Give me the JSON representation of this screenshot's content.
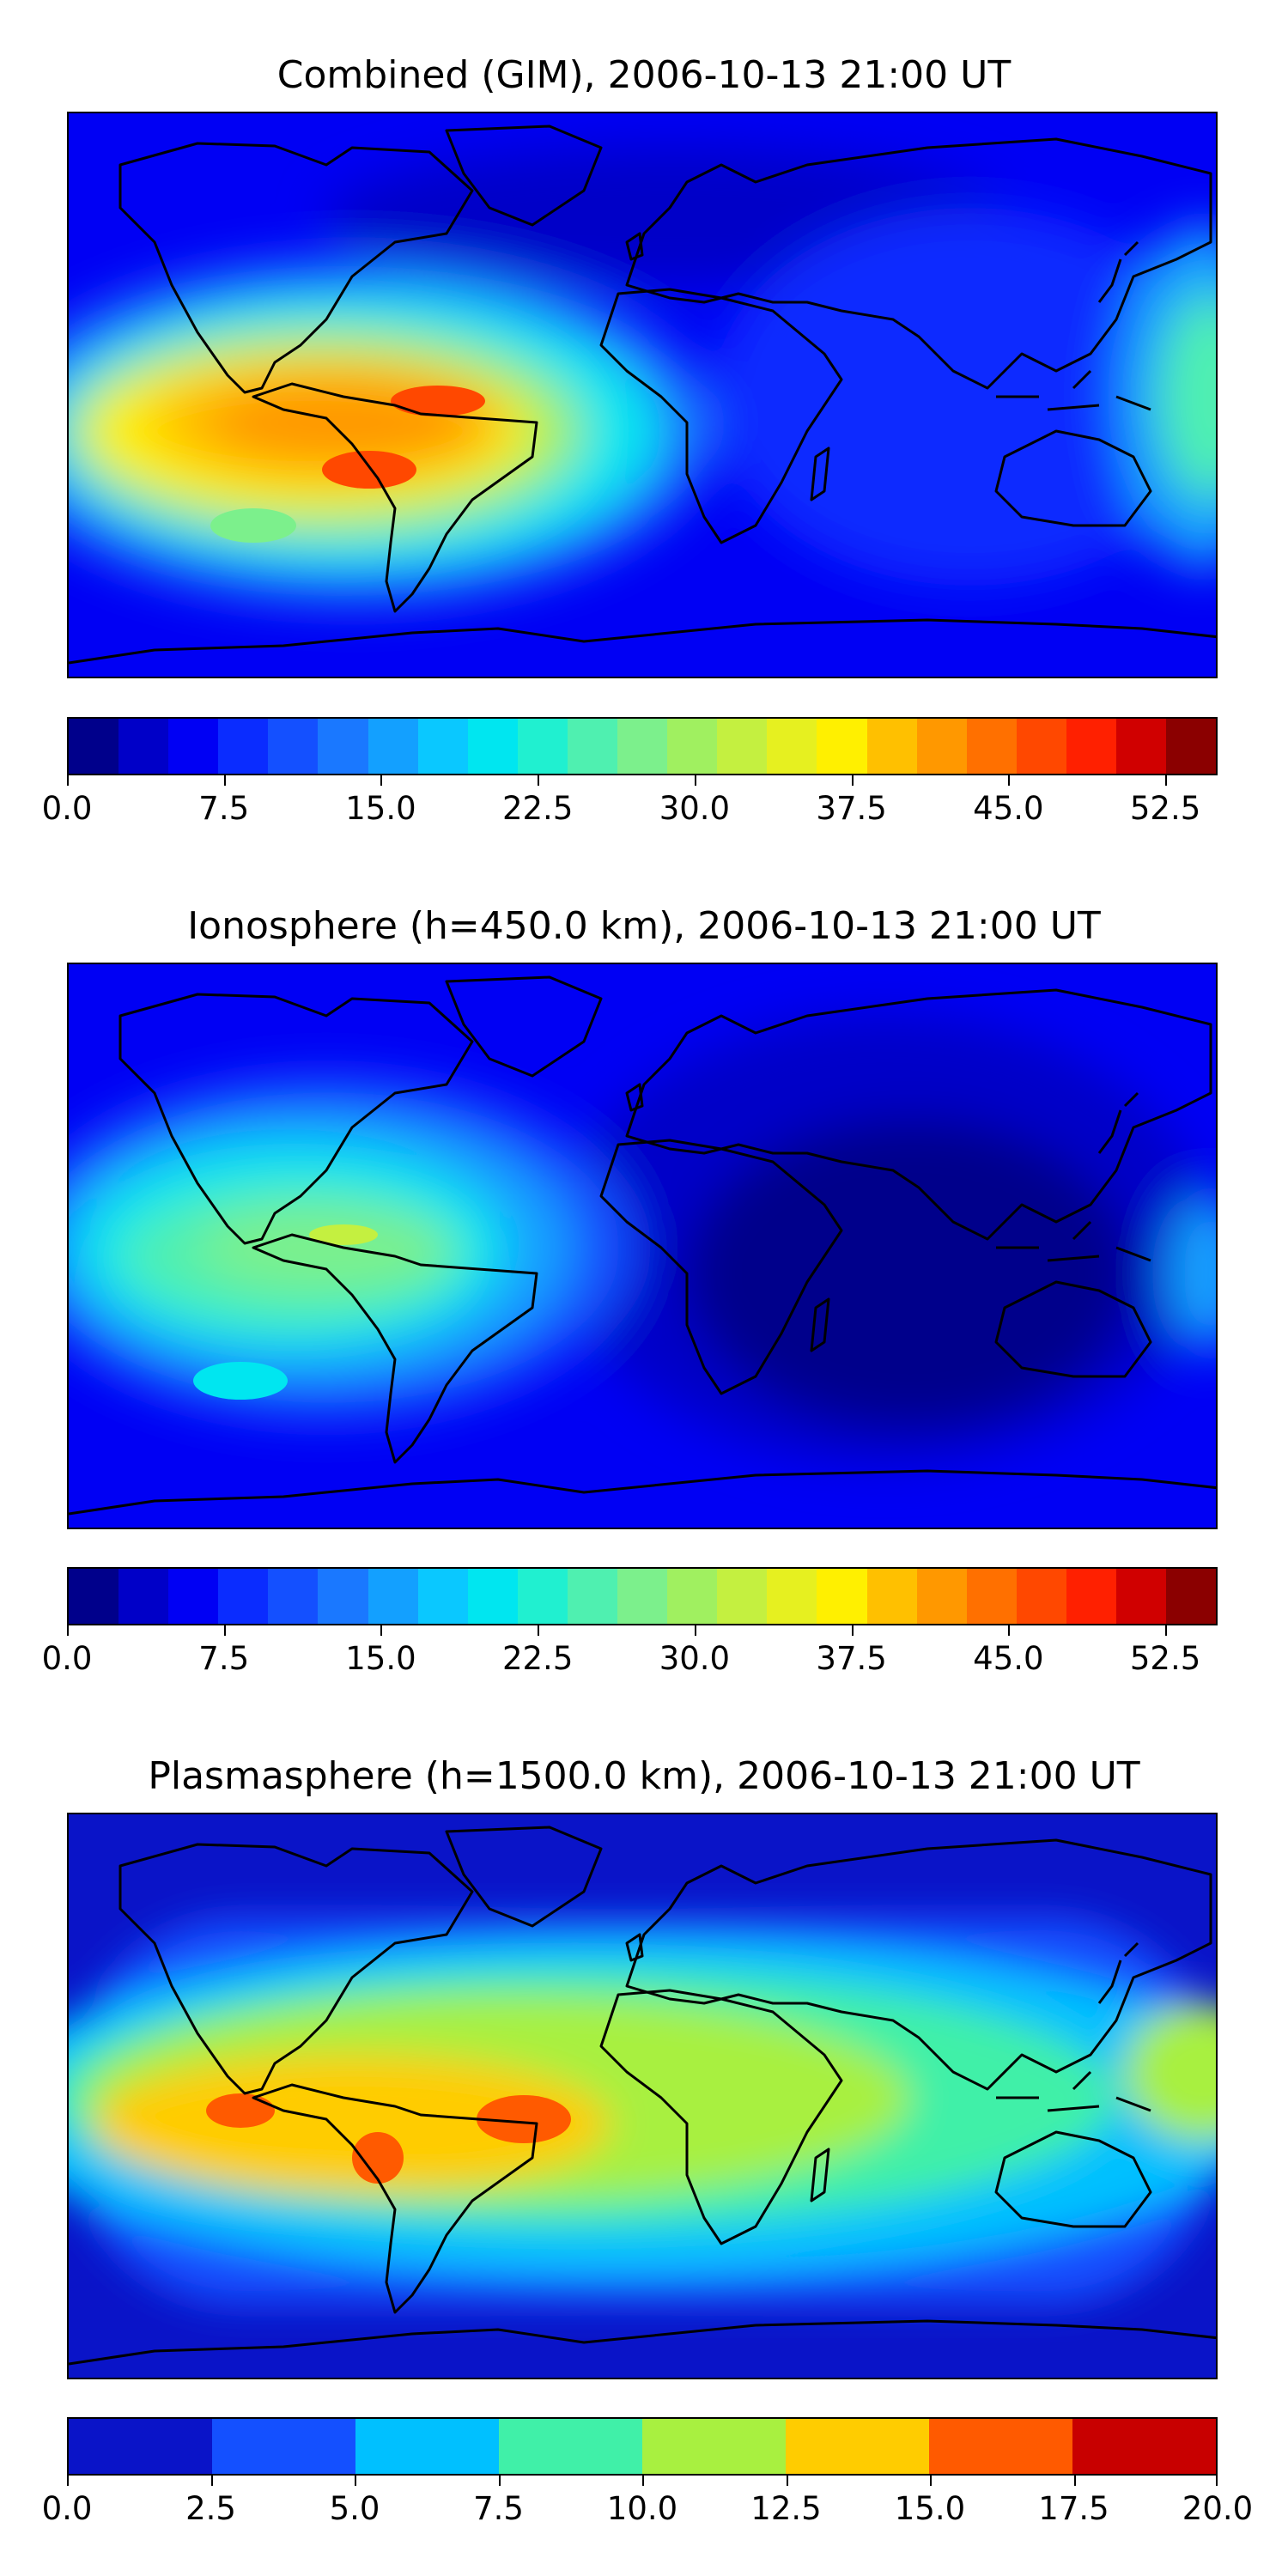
{
  "panels": [
    {
      "title": "Combined (GIM), 2006-10-13 21:00 UT",
      "colorbar": {
        "min": 0.0,
        "max": 55.0,
        "step": 2.5,
        "tick_labels": [
          "0.0",
          "7.5",
          "15.0",
          "22.5",
          "30.0",
          "37.5",
          "45.0",
          "52.5"
        ],
        "tick_values": [
          0,
          7.5,
          15,
          22.5,
          30,
          37.5,
          45,
          52.5
        ],
        "colors": [
          "#00008b",
          "#0000c8",
          "#0000f4",
          "#0a2cff",
          "#1450ff",
          "#1a78ff",
          "#13a0ff",
          "#0ac8ff",
          "#00e6f0",
          "#20f0d0",
          "#4ff0b0",
          "#7cf08c",
          "#a0f060",
          "#c4f040",
          "#e6f020",
          "#fff000",
          "#ffc000",
          "#ff9800",
          "#ff7000",
          "#ff4800",
          "#ff2000",
          "#d00000",
          "#8b0000"
        ]
      }
    },
    {
      "title": "Ionosphere  (h=450.0 km), 2006-10-13 21:00 UT",
      "colorbar": {
        "min": 0.0,
        "max": 55.0,
        "step": 2.5,
        "tick_labels": [
          "0.0",
          "7.5",
          "15.0",
          "22.5",
          "30.0",
          "37.5",
          "45.0",
          "52.5"
        ],
        "tick_values": [
          0,
          7.5,
          15,
          22.5,
          30,
          37.5,
          45,
          52.5
        ],
        "colors": [
          "#00008b",
          "#0000c8",
          "#0000f4",
          "#0a2cff",
          "#1450ff",
          "#1a78ff",
          "#13a0ff",
          "#0ac8ff",
          "#00e6f0",
          "#20f0d0",
          "#4ff0b0",
          "#7cf08c",
          "#a0f060",
          "#c4f040",
          "#e6f020",
          "#fff000",
          "#ffc000",
          "#ff9800",
          "#ff7000",
          "#ff4800",
          "#ff2000",
          "#d00000",
          "#8b0000"
        ]
      }
    },
    {
      "title": "Plasmasphere (h=1500.0 km), 2006-10-13 21:00 UT",
      "colorbar": {
        "min": 0.0,
        "max": 20.0,
        "step": 2.5,
        "tick_labels": [
          "0.0",
          "2.5",
          "5.0",
          "7.5",
          "10.0",
          "12.5",
          "15.0",
          "17.5",
          "20.0"
        ],
        "tick_values": [
          0,
          2.5,
          5,
          7.5,
          10,
          12.5,
          15,
          17.5,
          20
        ],
        "colors": [
          "#0a14c8",
          "#1450ff",
          "#00c0ff",
          "#40f0a8",
          "#a8f040",
          "#ffcc00",
          "#ff5a00",
          "#c80000"
        ]
      }
    }
  ]
}
